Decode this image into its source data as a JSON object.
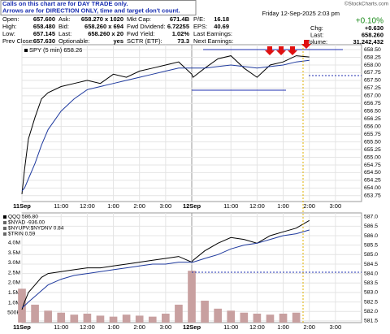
{
  "header": {
    "note": [
      "Calls on this chart are for DAY TRADE only.",
      "Arrows are for DIRECTION ONLY, time and target don't count."
    ],
    "copyright": "©StockCharts.com",
    "quote_rows": [
      [
        "Open:",
        "657.600",
        "Ask:",
        "658.270 x 1020",
        "Mkt Cap:",
        "671.4B",
        "P/E:",
        "16.18"
      ],
      [
        "High:",
        "658.480",
        "Bid:",
        "658.260 x 694",
        "Fwd Dividend:",
        "6.72255",
        "EPS:",
        "40.69"
      ],
      [
        "Low:",
        "657.145",
        "Last:",
        "658.260 x 20",
        "Fwd Yield:",
        "1.02%",
        "Last Earnings:"
      ],
      [
        "Prev Close:",
        "657.630",
        "Optionable:",
        "yes",
        "SCTR (ETF):",
        "73.3",
        "Next Earnings:"
      ]
    ],
    "date": "Friday 12-Sep-2025 2:03 pm",
    "pct_change": "+0.10%",
    "right_rows": [
      [
        "Chg:",
        "+0.630"
      ],
      [
        "Last:",
        "658.260"
      ],
      [
        "Volume:",
        "31,242,432"
      ]
    ]
  },
  "chart_data": [
    {
      "type": "line",
      "legend": "SPY (5 min) 658.26",
      "yaxis_side": "right",
      "grid": true,
      "xlim": [
        0,
        13
      ],
      "xticks": [
        {
          "value": 0,
          "label": "11Sep"
        },
        {
          "value": 1.5,
          "label": "11:00"
        },
        {
          "value": 2.5,
          "label": "12:00"
        },
        {
          "value": 3.5,
          "label": "1:00"
        },
        {
          "value": 4.5,
          "label": "2:00"
        },
        {
          "value": 5.5,
          "label": "3:00"
        },
        {
          "value": 6.5,
          "label": "12Sep"
        },
        {
          "value": 8,
          "label": "11:00"
        },
        {
          "value": 9,
          "label": "12:00"
        },
        {
          "value": 10,
          "label": "1:00"
        },
        {
          "value": 11,
          "label": "2:00"
        },
        {
          "value": 12,
          "label": "3:00"
        }
      ],
      "ylim": [
        653.56,
        658.66
      ],
      "yticks": [
        {
          "value": 658.5,
          "label": "658.50"
        },
        658.25,
        {
          "value": 658,
          "label": "658.00"
        },
        657.75,
        {
          "value": 657.5,
          "label": "657.50"
        },
        657.25,
        {
          "value": 657,
          "label": "657.00"
        },
        656.75,
        {
          "value": 656.5,
          "label": "656.50"
        },
        656.25,
        {
          "value": 656,
          "label": "656.00"
        },
        655.75,
        {
          "value": 655.5,
          "label": "655.50"
        },
        655.25,
        {
          "value": 655,
          "label": "655.00"
        },
        654.75,
        {
          "value": 654.5,
          "label": "654.50"
        },
        654.25,
        {
          "value": 654,
          "label": "654.00"
        },
        653.75
      ],
      "series": [
        {
          "color": "#000000",
          "axis": "y",
          "x": [
            0,
            0.1,
            0.25,
            0.5,
            0.75,
            1,
            1.5,
            2,
            2.5,
            3,
            3.5,
            4,
            4.5,
            5,
            5.5,
            6,
            6.5,
            6.55,
            7,
            7.5,
            8,
            8.5,
            9,
            9.5,
            10,
            10.5,
            11
          ],
          "values": [
            653.8,
            654.6,
            655.6,
            656.3,
            656.9,
            657.1,
            657.3,
            657.4,
            657.5,
            657.4,
            657.7,
            657.6,
            657.8,
            657.9,
            658.0,
            658.1,
            657.7,
            657.6,
            657.9,
            658.2,
            658.3,
            657.9,
            657.6,
            658.0,
            658.1,
            658.3,
            658.26
          ]
        },
        {
          "color": "#1f3a9e",
          "axis": "y",
          "x": [
            0,
            0.1,
            0.25,
            0.5,
            0.75,
            1,
            1.5,
            2,
            2.5,
            3,
            3.5,
            4,
            4.5,
            5,
            5.5,
            6,
            6.5,
            6.55,
            7,
            7.5,
            8,
            8.5,
            9,
            9.5,
            10,
            10.5,
            11
          ],
          "values": [
            653.9,
            654.0,
            654.3,
            654.8,
            655.4,
            655.9,
            656.5,
            656.9,
            657.2,
            657.3,
            657.4,
            657.5,
            657.6,
            657.7,
            657.8,
            657.9,
            657.9,
            657.9,
            657.9,
            657.95,
            658.0,
            657.95,
            657.9,
            657.95,
            658.0,
            658.1,
            658.15
          ]
        }
      ]
    },
    {
      "type": "line",
      "legend_lines": [
        "QQQ 586.80",
        "$NYAD -936.00",
        "$NYUPV:$NYDNV 0.84",
        "$TRIN 0.59"
      ],
      "grid": true,
      "xlim": [
        0,
        13
      ],
      "xticks": [
        {
          "value": 0,
          "label": "11Sep"
        },
        {
          "value": 1.5,
          "label": "11:00"
        },
        {
          "value": 2.5,
          "label": "12:00"
        },
        {
          "value": 3.5,
          "label": "1:00"
        },
        {
          "value": 4.5,
          "label": "2:00"
        },
        {
          "value": 5.5,
          "label": "3:00"
        },
        {
          "value": 6.5,
          "label": "12Sep"
        },
        {
          "value": 8,
          "label": "11:00"
        },
        {
          "value": 9,
          "label": "12:00"
        },
        {
          "value": 10,
          "label": "1:00"
        },
        {
          "value": 11,
          "label": "2:00"
        },
        {
          "value": 12,
          "label": "3:00"
        }
      ],
      "ylim": [
        0,
        5500000
      ],
      "yticks": [
        {
          "value": 4000000,
          "label": "4.0M"
        },
        {
          "value": 3500000,
          "label": "3.5M"
        },
        {
          "value": 3000000,
          "label": "3.0M"
        },
        {
          "value": 2500000,
          "label": "2.5M"
        },
        {
          "value": 2000000,
          "label": "2.0M"
        },
        {
          "value": 1500000,
          "label": "1.5M"
        },
        {
          "value": 1000000,
          "label": "1.0M"
        },
        {
          "value": 500000,
          "label": "500K"
        }
      ],
      "y2lim": [
        581.41,
        587.2
      ],
      "y2ticks": [
        {
          "value": 587,
          "label": "587.0"
        },
        586.5,
        {
          "value": 586,
          "label": "586.0"
        },
        585.5,
        {
          "value": 585,
          "label": "585.0"
        },
        584.5,
        {
          "value": 584,
          "label": "584.0"
        },
        583.5,
        {
          "value": 583,
          "label": "583.0"
        },
        582.5,
        {
          "value": 582,
          "label": "582.0"
        },
        581.5
      ],
      "series": [
        {
          "type": "bar",
          "color": "#c8a0a0",
          "axis": "y",
          "x": [
            0,
            0.5,
            1,
            1.5,
            2,
            2.5,
            3,
            3.5,
            4,
            4.5,
            5,
            5.5,
            6,
            6.5,
            7,
            7.5,
            8,
            8.5,
            9,
            9.5,
            10,
            10.5
          ],
          "values": [
            1700000,
            900000,
            600000,
            500000,
            400000,
            450000,
            350000,
            300000,
            400000,
            350000,
            300000,
            450000,
            900000,
            2600000,
            1100000,
            700000,
            600000,
            500000,
            450000,
            400000,
            450000,
            500000
          ]
        },
        {
          "color": "#000000",
          "axis": "y2",
          "x": [
            0,
            0.1,
            0.25,
            0.5,
            0.75,
            1,
            1.5,
            2,
            2.5,
            3,
            3.5,
            4,
            4.5,
            5,
            5.5,
            6,
            6.5,
            6.55,
            7,
            7.5,
            8,
            8.5,
            9,
            9.5,
            10,
            10.5,
            11
          ],
          "values": [
            582.1,
            582.5,
            583.0,
            583.4,
            583.8,
            584.0,
            584.1,
            584.2,
            584.3,
            584.3,
            584.4,
            584.5,
            584.6,
            584.7,
            584.8,
            584.9,
            584.6,
            584.7,
            585.2,
            585.6,
            585.9,
            585.8,
            585.6,
            586.0,
            586.2,
            586.4,
            586.8
          ]
        },
        {
          "color": "#1f3a9e",
          "axis": "y2",
          "x": [
            0,
            0.1,
            0.25,
            0.5,
            0.75,
            1,
            1.5,
            2,
            2.5,
            3,
            3.5,
            4,
            4.5,
            5,
            5.5,
            6,
            6.5,
            6.55,
            7,
            7.5,
            8,
            8.5,
            9,
            9.5,
            10,
            10.5,
            11
          ],
          "values": [
            582.2,
            582.3,
            582.5,
            582.8,
            583.1,
            583.4,
            583.7,
            583.9,
            584.0,
            584.1,
            584.2,
            584.3,
            584.4,
            584.5,
            584.5,
            584.6,
            584.6,
            584.6,
            584.8,
            585.0,
            585.3,
            585.5,
            585.6,
            585.8,
            586.0,
            586.1,
            586.3
          ]
        }
      ]
    }
  ]
}
